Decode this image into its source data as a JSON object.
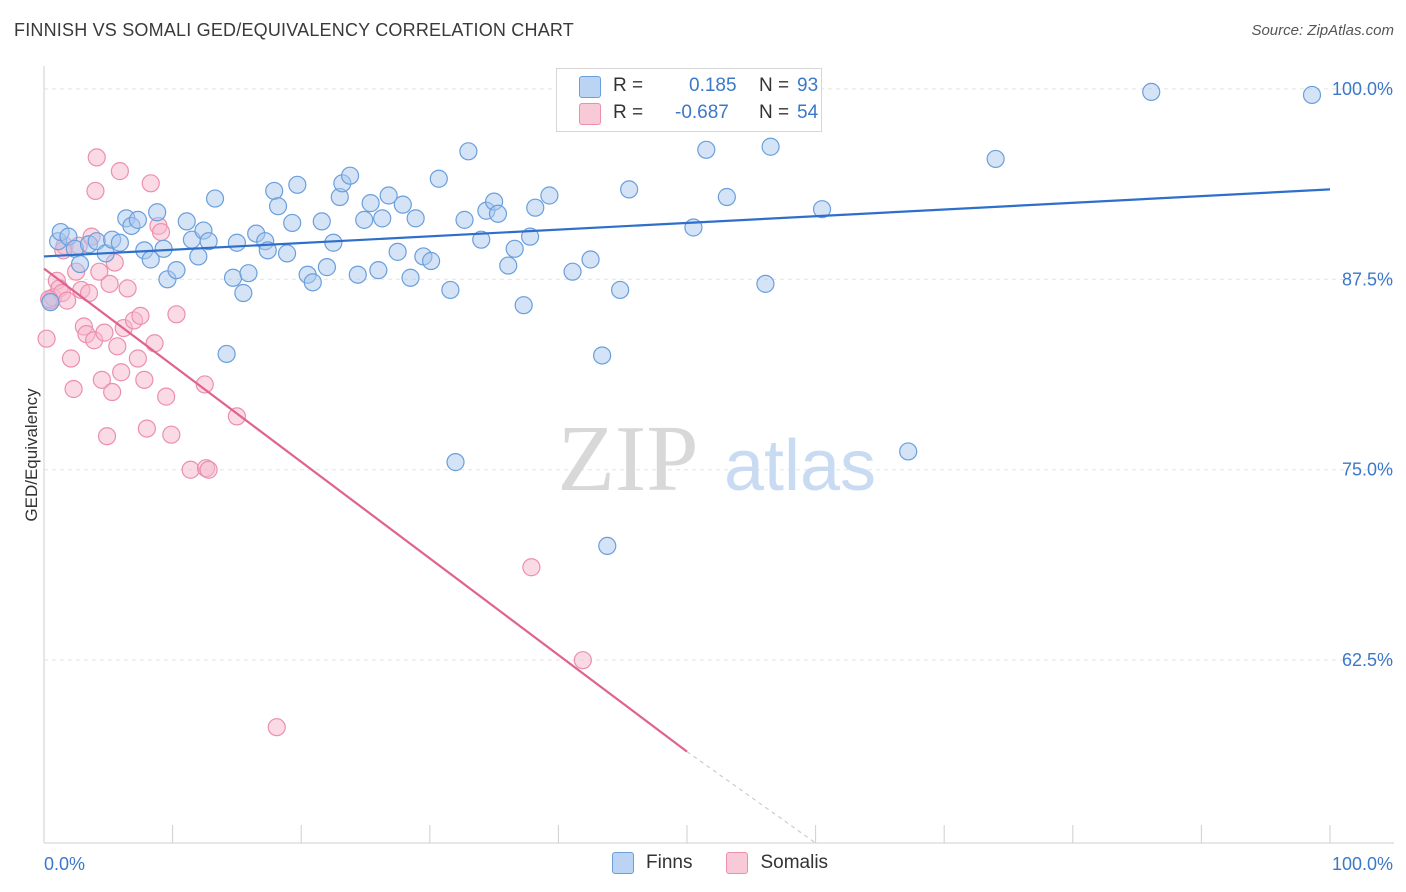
{
  "header": {
    "title": "FINNISH VS SOMALI GED/EQUIVALENCY CORRELATION CHART",
    "source": "Source: ZipAtlas.com"
  },
  "watermark": {
    "zip": "ZIP",
    "atlas": "atlas"
  },
  "legend": {
    "rows": [
      {
        "r_label": "R =",
        "r_value": "0.185",
        "n_label": "N =",
        "n_value": "93"
      },
      {
        "r_label": "R =",
        "r_value": "-0.687",
        "n_label": "N =",
        "n_value": "54"
      }
    ]
  },
  "bottom_legend": {
    "items": [
      "Finns",
      "Somalis"
    ]
  },
  "colors": {
    "finns_fill": "#a9c7ee",
    "finns_stroke": "#6a9fdc",
    "finns_line": "#2f6fcb",
    "somalis_fill": "#f5b8cb",
    "somalis_stroke": "#ec8fae",
    "somalis_line": "#e0628f",
    "axis_label": "#3b78c9",
    "grid": "#e3e3e3"
  },
  "chart_data": {
    "type": "scatter",
    "title": "FINNISH VS SOMALI GED/EQUIVALENCY CORRELATION CHART",
    "xlabel": "",
    "ylabel": "GED/Equivalency",
    "xlim": [
      0,
      100
    ],
    "ylim": [
      50.5,
      101.5
    ],
    "x_tick_labels": [
      "0.0%",
      "100.0%"
    ],
    "y_ticks": [
      62.5,
      75.0,
      87.5,
      100.0
    ],
    "y_tick_labels": [
      "62.5%",
      "75.0%",
      "87.5%",
      "100.0%"
    ],
    "grid": "horizontal dashed",
    "series": [
      {
        "name": "Finns",
        "trend": {
          "x": [
            0,
            100
          ],
          "y": [
            89.0,
            93.4
          ]
        },
        "points": [
          [
            0.5,
            86.0
          ],
          [
            1.1,
            90.0
          ],
          [
            1.3,
            90.6
          ],
          [
            1.9,
            90.3
          ],
          [
            2.4,
            89.5
          ],
          [
            2.8,
            88.5
          ],
          [
            3.5,
            89.8
          ],
          [
            4.1,
            90.0
          ],
          [
            4.8,
            89.2
          ],
          [
            5.3,
            90.1
          ],
          [
            5.9,
            89.9
          ],
          [
            6.4,
            91.5
          ],
          [
            6.8,
            91.0
          ],
          [
            7.3,
            91.4
          ],
          [
            7.8,
            89.4
          ],
          [
            8.3,
            88.8
          ],
          [
            8.8,
            91.9
          ],
          [
            9.3,
            89.5
          ],
          [
            9.6,
            87.5
          ],
          [
            10.3,
            88.1
          ],
          [
            11.1,
            91.3
          ],
          [
            11.5,
            90.1
          ],
          [
            12.0,
            89.0
          ],
          [
            12.4,
            90.7
          ],
          [
            12.8,
            90.0
          ],
          [
            13.3,
            92.8
          ],
          [
            14.2,
            82.6
          ],
          [
            14.7,
            87.6
          ],
          [
            15.0,
            89.9
          ],
          [
            15.5,
            86.6
          ],
          [
            15.9,
            87.9
          ],
          [
            16.5,
            90.5
          ],
          [
            17.2,
            90.0
          ],
          [
            17.4,
            89.4
          ],
          [
            17.9,
            93.3
          ],
          [
            18.2,
            92.3
          ],
          [
            18.9,
            89.2
          ],
          [
            19.3,
            91.2
          ],
          [
            19.7,
            93.7
          ],
          [
            20.5,
            87.8
          ],
          [
            20.9,
            87.3
          ],
          [
            21.6,
            91.3
          ],
          [
            22.0,
            88.3
          ],
          [
            22.5,
            89.9
          ],
          [
            23.0,
            92.9
          ],
          [
            23.2,
            93.8
          ],
          [
            23.8,
            94.3
          ],
          [
            24.4,
            87.8
          ],
          [
            24.9,
            91.4
          ],
          [
            25.4,
            92.5
          ],
          [
            26.0,
            88.1
          ],
          [
            26.3,
            91.5
          ],
          [
            26.8,
            93.0
          ],
          [
            27.5,
            89.3
          ],
          [
            27.9,
            92.4
          ],
          [
            28.5,
            87.6
          ],
          [
            28.9,
            91.5
          ],
          [
            29.5,
            89.0
          ],
          [
            30.1,
            88.7
          ],
          [
            30.7,
            94.1
          ],
          [
            31.6,
            86.8
          ],
          [
            32.0,
            75.5
          ],
          [
            32.7,
            91.4
          ],
          [
            33.0,
            95.9
          ],
          [
            34.0,
            90.1
          ],
          [
            34.4,
            92.0
          ],
          [
            35.0,
            92.6
          ],
          [
            35.3,
            91.8
          ],
          [
            36.1,
            88.4
          ],
          [
            36.6,
            89.5
          ],
          [
            37.3,
            85.8
          ],
          [
            37.8,
            90.3
          ],
          [
            38.2,
            92.2
          ],
          [
            39.3,
            93.0
          ],
          [
            41.1,
            88.0
          ],
          [
            42.5,
            88.8
          ],
          [
            43.4,
            82.5
          ],
          [
            43.8,
            70.0
          ],
          [
            44.8,
            86.8
          ],
          [
            45.5,
            93.4
          ],
          [
            46.2,
            99.3
          ],
          [
            50.5,
            90.9
          ],
          [
            51.5,
            96.0
          ],
          [
            53.1,
            92.9
          ],
          [
            55.6,
            99.8
          ],
          [
            56.1,
            87.2
          ],
          [
            56.5,
            96.2
          ],
          [
            59.0,
            99.9
          ],
          [
            60.5,
            92.1
          ],
          [
            67.2,
            76.2
          ],
          [
            74.0,
            95.4
          ],
          [
            86.1,
            99.8
          ],
          [
            98.6,
            99.6
          ]
        ]
      },
      {
        "name": "Somalis",
        "trend": {
          "x": [
            0,
            50
          ],
          "y": [
            88.2,
            56.5
          ]
        },
        "trend_dashed": {
          "x": [
            50,
            60
          ],
          "y": [
            56.5,
            50.5
          ]
        },
        "points": [
          [
            0.2,
            83.6
          ],
          [
            0.5,
            86.1
          ],
          [
            0.7,
            86.3
          ],
          [
            1.0,
            87.4
          ],
          [
            1.2,
            86.9
          ],
          [
            1.4,
            86.6
          ],
          [
            1.6,
            89.7
          ],
          [
            1.8,
            86.1
          ],
          [
            2.1,
            82.3
          ],
          [
            2.3,
            80.3
          ],
          [
            2.5,
            88.0
          ],
          [
            2.7,
            89.7
          ],
          [
            2.9,
            86.8
          ],
          [
            3.1,
            84.4
          ],
          [
            3.3,
            83.9
          ],
          [
            3.5,
            86.6
          ],
          [
            3.7,
            90.3
          ],
          [
            3.9,
            83.5
          ],
          [
            4.0,
            93.3
          ],
          [
            4.1,
            95.5
          ],
          [
            4.3,
            88.0
          ],
          [
            4.5,
            80.9
          ],
          [
            4.7,
            84.0
          ],
          [
            4.9,
            77.2
          ],
          [
            5.1,
            87.2
          ],
          [
            5.3,
            80.1
          ],
          [
            5.5,
            88.6
          ],
          [
            5.7,
            83.1
          ],
          [
            5.9,
            94.6
          ],
          [
            6.0,
            81.4
          ],
          [
            6.2,
            84.3
          ],
          [
            6.5,
            86.9
          ],
          [
            7.0,
            84.8
          ],
          [
            7.3,
            82.3
          ],
          [
            7.5,
            85.1
          ],
          [
            7.8,
            80.9
          ],
          [
            8.0,
            77.7
          ],
          [
            8.3,
            93.8
          ],
          [
            8.6,
            83.3
          ],
          [
            8.9,
            91.0
          ],
          [
            9.1,
            90.6
          ],
          [
            9.5,
            79.8
          ],
          [
            9.9,
            77.3
          ],
          [
            10.3,
            85.2
          ],
          [
            11.4,
            75.0
          ],
          [
            12.5,
            80.6
          ],
          [
            12.6,
            75.1
          ],
          [
            12.8,
            75.0
          ],
          [
            15.0,
            78.5
          ],
          [
            18.1,
            58.1
          ],
          [
            37.9,
            68.6
          ],
          [
            41.9,
            62.5
          ],
          [
            0.4,
            86.2
          ],
          [
            1.5,
            89.4
          ]
        ]
      }
    ]
  }
}
